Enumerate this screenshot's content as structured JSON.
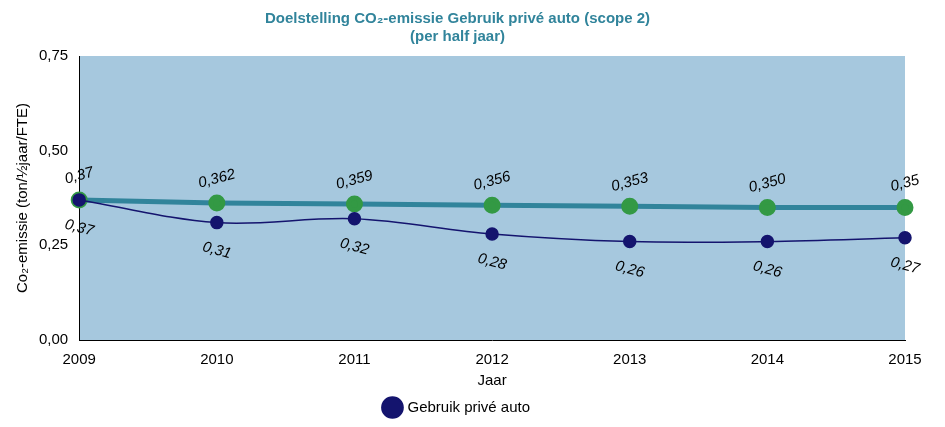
{
  "chart_data": {
    "type": "line",
    "title": "Doelstelling CO₂-emissie Gebruik privé auto (scope 2)",
    "subtitle": "(per half jaar)",
    "x_label": "Jaar",
    "y_label": "Co₂-emissie (ton/½jaar/FTE)",
    "categories": [
      "2009",
      "2010",
      "2011",
      "2012",
      "2013",
      "2014",
      "2015"
    ],
    "series": [
      {
        "color": "#31849b",
        "marker": "circle",
        "line_style": "solid",
        "values": [
          0.37,
          0.362,
          0.359,
          0.356,
          0.353,
          0.35,
          0.35
        ],
        "value_labels": [
          "0,37",
          "0,362",
          "0,359",
          "0,356",
          "0,353",
          "0,350",
          "0,35"
        ]
      },
      {
        "name": "Gebruik privé auto",
        "color": "#14146e",
        "marker": "circle",
        "line_style": "smooth",
        "values": [
          0.37,
          0.31,
          0.32,
          0.28,
          0.26,
          0.26,
          0.27
        ],
        "value_labels": [
          "0,37",
          "0,31",
          "0,32",
          "0,28",
          "0,26",
          "0,26",
          "0,27"
        ]
      }
    ],
    "ylim": [
      0,
      0.75
    ],
    "yticks": [
      {
        "value": 0,
        "label": "0,00"
      },
      {
        "value": 0.25,
        "label": "0,25"
      },
      {
        "value": 0.5,
        "label": "0,50"
      },
      {
        "value": 0.75,
        "label": "0,75"
      }
    ],
    "grid": false,
    "legend": "bottom",
    "data_labels": true
  }
}
